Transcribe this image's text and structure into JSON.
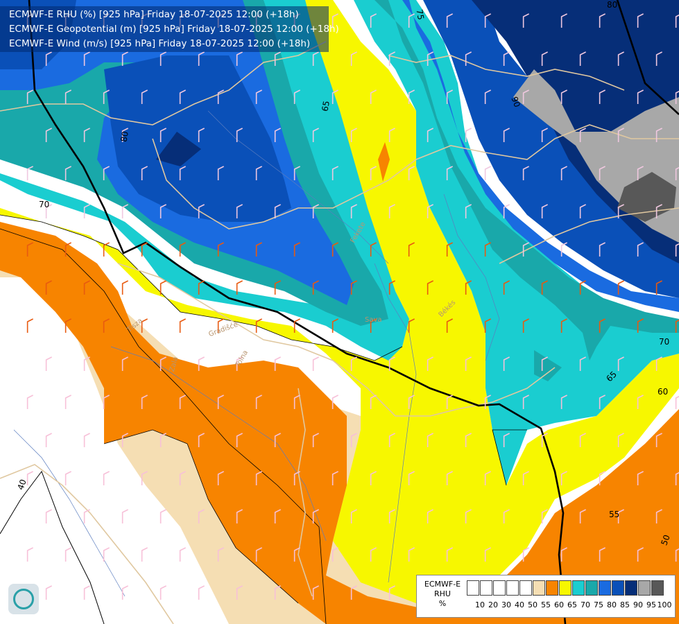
{
  "title_lines": [
    "ECMWF-E RHU (%) [925 hPa] Friday 18-07-2025 12:00 (+18h)",
    "ECMWF-E Geopotential (m) [925 hPa] Friday 18-07-2025 12:00 (+18h)",
    "ECMWF-E Wind (m/s) [925 hPa] Friday 18-07-2025 12:00 (+18h)"
  ],
  "legend": {
    "title_lines": [
      "ECMWF-E",
      "RHU",
      "%"
    ],
    "ticks": [
      "10",
      "20",
      "30",
      "40",
      "50",
      "55",
      "60",
      "65",
      "70",
      "75",
      "80",
      "85",
      "90",
      "95",
      "100"
    ],
    "colors": [
      "#ffffff",
      "#ffffff",
      "#ffffff",
      "#ffffff",
      "#ffffff",
      "#f5deb3",
      "#f78400",
      "#f7f700",
      "#1acdd0",
      "#19a8aa",
      "#1a6be0",
      "#0a50b8",
      "#062e78",
      "#a8a8a8",
      "#585858"
    ]
  },
  "contour_labels": [
    "80",
    "80",
    "75",
    "65",
    "90",
    "70",
    "70",
    "65",
    "60",
    "55",
    "50",
    "40"
  ],
  "place_labels": [
    "Tisza",
    "Fekete",
    "Zala",
    "Gradišće",
    "Tolna",
    "Békés",
    "Sava"
  ],
  "rhu_colors": {
    "rhu_55": "#f5deb3",
    "rhu_60": "#f78400",
    "rhu_65": "#f7f700",
    "rhu_70": "#1acdd0",
    "rhu_75": "#19a8aa",
    "rhu_80": "#1a6be0",
    "rhu_85": "#0a50b8",
    "rhu_90": "#062e78",
    "rhu_95": "#a8a8a8",
    "rhu_100": "#585858"
  },
  "logo_icon": "ecmwf-logo-icon"
}
